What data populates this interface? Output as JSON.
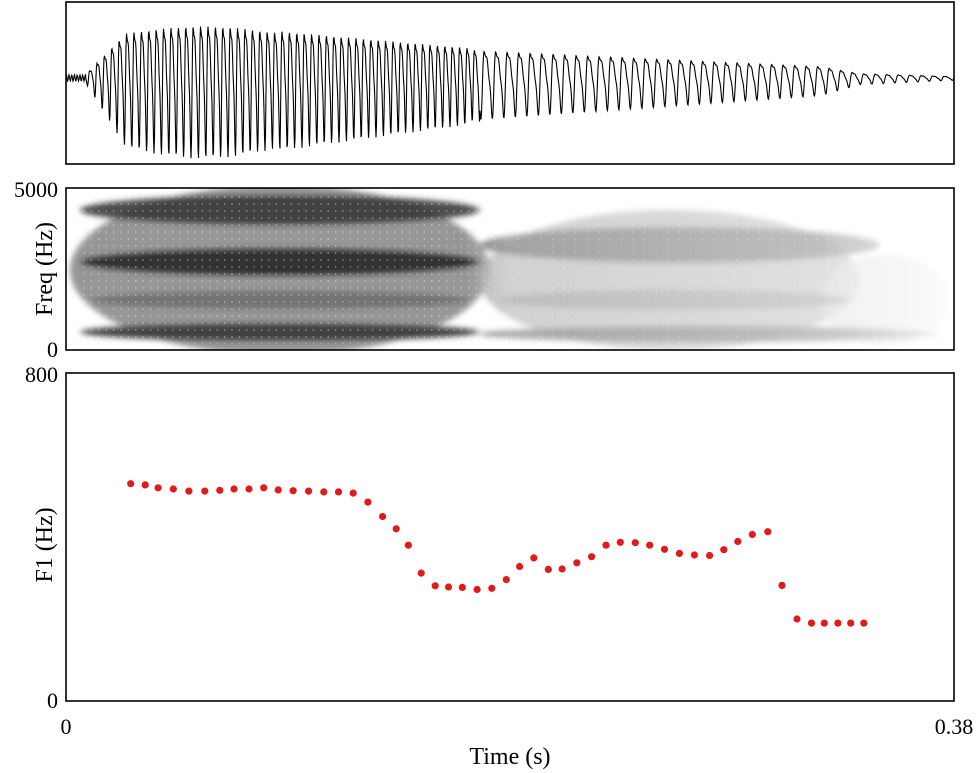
{
  "chart_data": [
    {
      "type": "line",
      "panel": "waveform",
      "title": "",
      "xlabel": "",
      "ylabel": "",
      "xlim": [
        0,
        0.38
      ],
      "grid": false
    },
    {
      "type": "heatmap",
      "panel": "spectrogram",
      "title": "",
      "xlabel": "",
      "ylabel": "Freq (Hz)",
      "xlim": [
        0,
        0.38
      ],
      "ylim": [
        0,
        5000
      ],
      "y_ticks": [
        "0",
        "5000"
      ],
      "colormap": "grayscale (darker = more energy)",
      "grid": false
    },
    {
      "type": "scatter",
      "panel": "formant",
      "title": "",
      "xlabel": "Time (s)",
      "ylabel": "F1 (Hz)",
      "xlim": [
        0,
        0.38
      ],
      "ylim": [
        0,
        800
      ],
      "x_ticks": [
        "0",
        "0.38"
      ],
      "y_ticks": [
        "0",
        "800"
      ],
      "marker_color": "#e01b1b",
      "grid": false,
      "series": [
        {
          "x": [
            0.0277,
            0.0339,
            0.0394,
            0.0459,
            0.0526,
            0.0594,
            0.0658,
            0.0719,
            0.0783,
            0.0846,
            0.0908,
            0.0972,
            0.1038,
            0.1103,
            0.1166,
            0.1229,
            0.1292,
            0.1355,
            0.1413,
            0.1465,
            0.152,
            0.158,
            0.1637,
            0.1696,
            0.1759,
            0.1822,
            0.1884,
            0.1941,
            0.2002,
            0.2064,
            0.2123,
            0.2186,
            0.2249,
            0.2311,
            0.2372,
            0.2436,
            0.2498,
            0.2561,
            0.2625,
            0.2689,
            0.2754,
            0.2815,
            0.2875,
            0.2937,
            0.3003,
            0.3064,
            0.3128,
            0.319,
            0.3245,
            0.3303,
            0.3358,
            0.3414
          ],
          "y": [
            530,
            527,
            520,
            517,
            512,
            512,
            514,
            517,
            517,
            520,
            515,
            513,
            512,
            510,
            510,
            507,
            485,
            450,
            420,
            380,
            312,
            281,
            278,
            277,
            272,
            275,
            296,
            328,
            349,
            321,
            322,
            337,
            352,
            380,
            387,
            386,
            380,
            370,
            360,
            356,
            355,
            369,
            389,
            406,
            413,
            282,
            200,
            190,
            190,
            190,
            190,
            190
          ]
        }
      ]
    }
  ]
}
